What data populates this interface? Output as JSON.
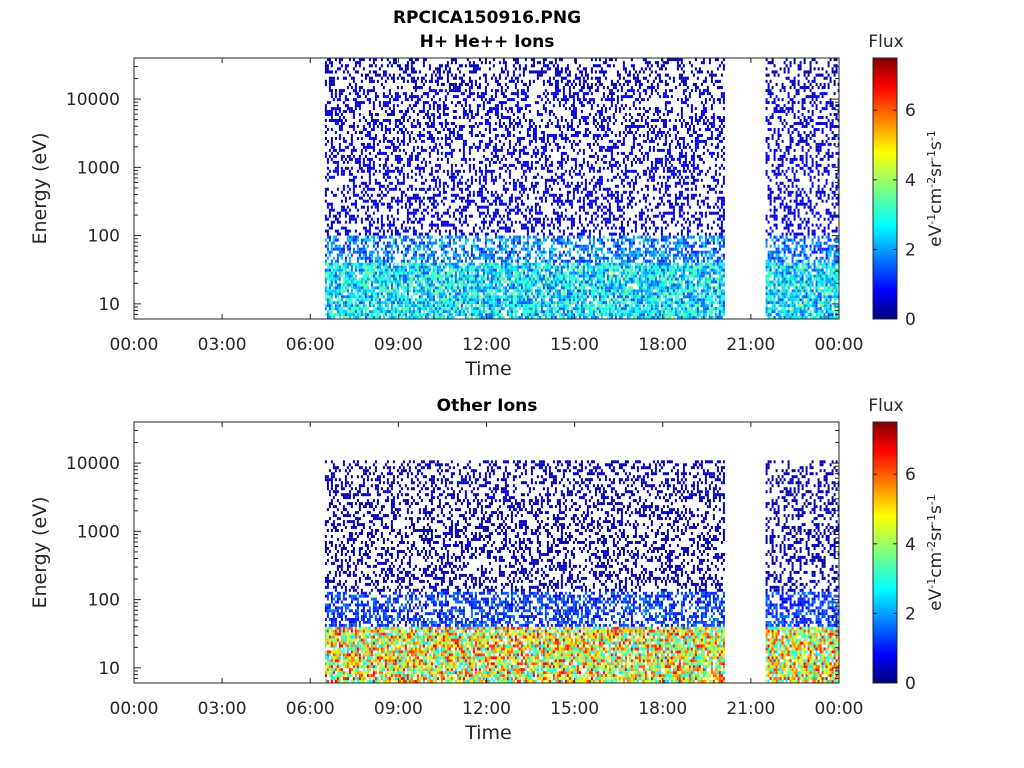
{
  "figure": {
    "title": "RPCICA150916.PNG",
    "panels": [
      {
        "subtitle": "H+ He++ Ions",
        "xlabel": "Time",
        "ylabel": "Energy (eV)",
        "colorbar_title": "Flux"
      },
      {
        "subtitle": "Other Ions",
        "xlabel": "Time",
        "ylabel": "Energy (eV)",
        "colorbar_title": "Flux"
      }
    ]
  },
  "chart_data": [
    {
      "type": "heatmap",
      "title": "RPCICA150916.PNG",
      "subtitle": "H+ He++ Ions",
      "xlabel": "Time",
      "ylabel": "Energy (eV)",
      "x_ticks": [
        "00:00",
        "03:00",
        "06:00",
        "09:00",
        "12:00",
        "15:00",
        "18:00",
        "21:00",
        "00:00"
      ],
      "xlim_hours": [
        0,
        24
      ],
      "y_scale": "log",
      "y_ticks": [
        "10",
        "100",
        "1000",
        "10000"
      ],
      "ylim": [
        6,
        40000
      ],
      "data_intervals_hours": [
        [
          6.5,
          20.1
        ],
        [
          21.5,
          24
        ]
      ],
      "colorbar": {
        "label": "Flux",
        "units": "eV-1cm-2sr-1s-1",
        "range": [
          0,
          7.5
        ],
        "ticks": [
          "0",
          "2",
          "4",
          "6"
        ],
        "colormap": "jet"
      },
      "energy_bands": [
        {
          "e_low": 6,
          "e_high": 40,
          "flux": 2.6
        },
        {
          "e_low": 40,
          "e_high": 100,
          "flux": 1.8
        },
        {
          "e_low": 100,
          "e_high": 14000,
          "flux": 0.7
        },
        {
          "e_low": 14000,
          "e_high": 40000,
          "flux": 0.4
        }
      ]
    },
    {
      "type": "heatmap",
      "subtitle": "Other Ions",
      "xlabel": "Time",
      "ylabel": "Energy (eV)",
      "x_ticks": [
        "00:00",
        "03:00",
        "06:00",
        "09:00",
        "12:00",
        "15:00",
        "18:00",
        "21:00",
        "00:00"
      ],
      "xlim_hours": [
        0,
        24
      ],
      "y_scale": "log",
      "y_ticks": [
        "10",
        "100",
        "1000",
        "10000"
      ],
      "ylim": [
        6,
        40000
      ],
      "data_intervals_hours": [
        [
          6.5,
          20.1
        ],
        [
          21.5,
          24
        ]
      ],
      "colorbar": {
        "label": "Flux",
        "units": "eV-1cm-2sr-1s-1",
        "range": [
          0,
          7.5
        ],
        "ticks": [
          "0",
          "2",
          "4",
          "6"
        ],
        "colormap": "jet"
      },
      "energy_bands": [
        {
          "e_low": 6,
          "e_high": 40,
          "flux": 4.6
        },
        {
          "e_low": 40,
          "e_high": 130,
          "flux": 1.3
        },
        {
          "e_low": 130,
          "e_high": 11000,
          "flux": 0.4
        }
      ]
    }
  ]
}
